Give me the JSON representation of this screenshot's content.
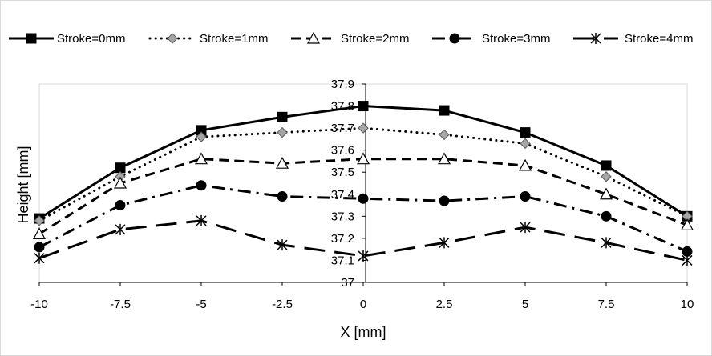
{
  "chart_data": {
    "type": "line",
    "title": "",
    "xlabel": "X [mm]",
    "ylabel": "Height [mm]",
    "x": [
      -10,
      -7.5,
      -5,
      -2.5,
      0,
      2.5,
      5,
      7.5,
      10
    ],
    "xlim": [
      -10,
      10
    ],
    "ylim": [
      37,
      37.9
    ],
    "x_ticks": [
      "-10",
      "-7.5",
      "-5",
      "-2.5",
      "0",
      "2.5",
      "5",
      "7.5",
      "10"
    ],
    "y_ticks": [
      "37",
      "37.1",
      "37.2",
      "37.3",
      "37.4",
      "37.5",
      "37.6",
      "37.7",
      "37.8",
      "37.9"
    ],
    "grid": false,
    "legend_position": "top",
    "series": [
      {
        "name": "Stroke=0mm",
        "values": [
          37.29,
          37.52,
          37.69,
          37.75,
          37.8,
          37.78,
          37.68,
          37.53,
          37.3
        ],
        "marker": "square",
        "dash": "solid",
        "color": "#000000"
      },
      {
        "name": "Stroke=1mm",
        "values": [
          37.28,
          37.48,
          37.66,
          37.68,
          37.7,
          37.67,
          37.63,
          37.48,
          37.3
        ],
        "marker": "diamond",
        "dash": "dotted",
        "color": "#000000"
      },
      {
        "name": "Stroke=2mm",
        "values": [
          37.22,
          37.45,
          37.56,
          37.54,
          37.56,
          37.56,
          37.53,
          37.4,
          37.26
        ],
        "marker": "triangle",
        "dash": "dashed",
        "color": "#000000"
      },
      {
        "name": "Stroke=3mm",
        "values": [
          37.16,
          37.35,
          37.44,
          37.39,
          37.38,
          37.37,
          37.39,
          37.3,
          37.14
        ],
        "marker": "circle",
        "dash": "dashdot",
        "color": "#000000"
      },
      {
        "name": "Stroke=4mm",
        "values": [
          37.11,
          37.24,
          37.28,
          37.17,
          37.12,
          37.18,
          37.25,
          37.18,
          37.1
        ],
        "marker": "star",
        "dash": "longdash",
        "color": "#000000"
      }
    ]
  }
}
